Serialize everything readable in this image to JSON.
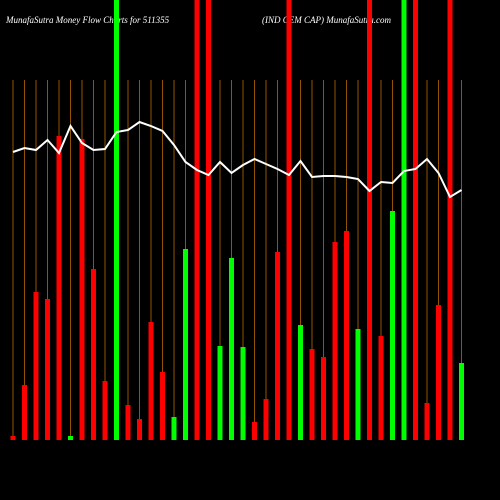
{
  "chart_data": {
    "type": "bar",
    "title": "MunafaSutra  Money Flow  Charts for 511355",
    "subtitle": "(IND CEM CAP) MunafaSutra.com",
    "categories": [
      null,
      null,
      null,
      null,
      null,
      null,
      null,
      null,
      null,
      null,
      null,
      null,
      null,
      null,
      null,
      null,
      null,
      null,
      null,
      null,
      null,
      null,
      null,
      null,
      null,
      null,
      null,
      null,
      null,
      null,
      null,
      null,
      null,
      null,
      null,
      null,
      null,
      null,
      null,
      null
    ],
    "values": [
      4,
      55,
      148,
      141,
      304,
      4,
      301,
      171,
      59,
      440,
      35,
      21,
      118,
      68,
      23,
      191,
      440,
      440,
      94,
      182,
      93,
      18,
      41,
      188,
      440,
      115,
      91,
      83,
      198,
      209,
      111,
      440,
      104,
      229,
      440,
      440,
      37,
      135,
      440,
      77
    ],
    "colors": [
      "#ff0000",
      "#ff0000",
      "#ff0000",
      "#ff0000",
      "#ff0000",
      "#00ff00",
      "#ff0000",
      "#ff0000",
      "#ff0000",
      "#00ff00",
      "#ff0000",
      "#ff0000",
      "#ff0000",
      "#ff0000",
      "#00ff00",
      "#00ff00",
      "#ff0000",
      "#ff0000",
      "#00ff00",
      "#00ff00",
      "#00ff00",
      "#ff0000",
      "#ff0000",
      "#ff0000",
      "#ff0000",
      "#00ff00",
      "#ff0000",
      "#ff0000",
      "#ff0000",
      "#ff0000",
      "#00ff00",
      "#ff0000",
      "#ff0000",
      "#00ff00",
      "#00ff00",
      "#ff0000",
      "#ff0000",
      "#ff0000",
      "#ff0000",
      "#00ff00"
    ],
    "line_values": [
      288,
      292,
      290,
      300,
      287,
      314,
      297,
      290,
      291,
      308,
      310,
      318,
      314,
      309,
      295,
      278,
      270,
      265,
      278,
      267,
      275,
      281,
      276,
      271,
      265,
      279,
      263,
      264,
      264,
      263,
      261,
      249,
      258,
      257,
      269,
      271,
      281,
      267,
      243,
      250
    ],
    "line_color": "#ffffff",
    "ylim": [
      0,
      440
    ]
  }
}
